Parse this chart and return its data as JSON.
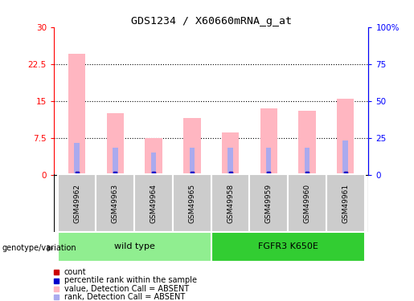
{
  "title": "GDS1234 / X60660mRNA_g_at",
  "samples": [
    "GSM49962",
    "GSM49963",
    "GSM49964",
    "GSM49965",
    "GSM49958",
    "GSM49959",
    "GSM49960",
    "GSM49961"
  ],
  "pink_values": [
    24.5,
    12.5,
    7.5,
    11.5,
    8.5,
    13.5,
    13.0,
    15.5
  ],
  "blue_rank_values": [
    6.5,
    5.5,
    4.5,
    5.5,
    5.5,
    5.5,
    5.5,
    7.0
  ],
  "ylim_left": [
    0,
    30
  ],
  "ylim_right": [
    0,
    100
  ],
  "yticks_left": [
    0,
    7.5,
    15,
    22.5,
    30
  ],
  "yticks_right": [
    0,
    25,
    50,
    75,
    100
  ],
  "ytick_labels_left": [
    "0",
    "7.5",
    "15",
    "22.5",
    "30"
  ],
  "ytick_labels_right": [
    "0",
    "25",
    "50",
    "75",
    "100%"
  ],
  "groups": [
    {
      "label": "wild type",
      "indices": [
        0,
        1,
        2,
        3
      ],
      "color": "#90EE90"
    },
    {
      "label": "FGFR3 K650E",
      "indices": [
        4,
        5,
        6,
        7
      ],
      "color": "#32CD32"
    }
  ],
  "group_row_label": "genotype/variation",
  "legend": [
    {
      "label": "count",
      "color": "#CC0000"
    },
    {
      "label": "percentile rank within the sample",
      "color": "#0000CC"
    },
    {
      "label": "value, Detection Call = ABSENT",
      "color": "#FFB6C1"
    },
    {
      "label": "rank, Detection Call = ABSENT",
      "color": "#AAAAEE"
    }
  ],
  "pink_color": "#FFB6C1",
  "blue_rank_color": "#AAAAEE",
  "red_color": "#CC0000",
  "blue_color": "#0000CC",
  "bar_width": 0.45,
  "background_color": "#FFFFFF",
  "sample_bg_color": "#CCCCCC",
  "dotted_grid_color": "black",
  "dotted_grid_values": [
    7.5,
    15.0,
    22.5
  ]
}
